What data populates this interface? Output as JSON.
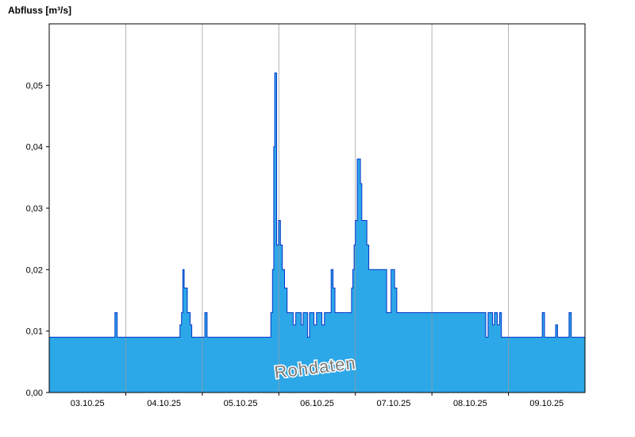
{
  "chart_data": {
    "type": "area",
    "title": "Abfluss [m³/s]",
    "ylabel": "Abfluss [m³/s]",
    "xlabel": "",
    "watermark": "Rohdaten",
    "x_unit": "hours since 03.10.25 00:00",
    "x_range_hours": [
      0,
      168
    ],
    "ylim": [
      0,
      0.06
    ],
    "grid": "vertical-day-lines-only",
    "legend": "none",
    "y_ticks": [
      {
        "value": 0.0,
        "label": "0,00"
      },
      {
        "value": 0.01,
        "label": "0,01"
      },
      {
        "value": 0.02,
        "label": "0,02"
      },
      {
        "value": 0.03,
        "label": "0,03"
      },
      {
        "value": 0.04,
        "label": "0,04"
      },
      {
        "value": 0.05,
        "label": "0,05"
      }
    ],
    "x_ticks": [
      {
        "day_center_hour": 12,
        "label": "03.10.25"
      },
      {
        "day_center_hour": 36,
        "label": "04.10.25"
      },
      {
        "day_center_hour": 60,
        "label": "05.10.25"
      },
      {
        "day_center_hour": 84,
        "label": "06.10.25"
      },
      {
        "day_center_hour": 108,
        "label": "07.10.25"
      },
      {
        "day_center_hour": 132,
        "label": "08.10.25"
      },
      {
        "day_center_hour": 156,
        "label": "09.10.25"
      }
    ],
    "day_gridlines_hours": [
      24,
      48,
      72,
      96,
      120,
      144
    ],
    "series": [
      {
        "name": "Rohdaten",
        "color_fill": "#2CA7E8",
        "color_line": "#0535C8",
        "step": "after",
        "points": [
          [
            0.0,
            0.009
          ],
          [
            20.6,
            0.013
          ],
          [
            21.3,
            0.009
          ],
          [
            41.0,
            0.011
          ],
          [
            41.5,
            0.013
          ],
          [
            41.9,
            0.02
          ],
          [
            42.3,
            0.017
          ],
          [
            43.3,
            0.013
          ],
          [
            44.2,
            0.011
          ],
          [
            44.7,
            0.009
          ],
          [
            48.8,
            0.013
          ],
          [
            49.5,
            0.009
          ],
          [
            69.5,
            0.013
          ],
          [
            70.0,
            0.02
          ],
          [
            70.4,
            0.04
          ],
          [
            70.7,
            0.052
          ],
          [
            71.3,
            0.024
          ],
          [
            71.9,
            0.028
          ],
          [
            72.5,
            0.024
          ],
          [
            73.1,
            0.02
          ],
          [
            73.8,
            0.017
          ],
          [
            74.6,
            0.013
          ],
          [
            76.5,
            0.011
          ],
          [
            77.3,
            0.013
          ],
          [
            79.0,
            0.011
          ],
          [
            79.6,
            0.013
          ],
          [
            81.0,
            0.009
          ],
          [
            81.6,
            0.013
          ],
          [
            83.0,
            0.011
          ],
          [
            83.8,
            0.013
          ],
          [
            85.5,
            0.011
          ],
          [
            86.3,
            0.013
          ],
          [
            88.4,
            0.02
          ],
          [
            89.0,
            0.017
          ],
          [
            89.6,
            0.013
          ],
          [
            94.8,
            0.017
          ],
          [
            95.2,
            0.02
          ],
          [
            95.6,
            0.024
          ],
          [
            96.0,
            0.028
          ],
          [
            96.6,
            0.038
          ],
          [
            97.6,
            0.034
          ],
          [
            98.0,
            0.028
          ],
          [
            99.6,
            0.024
          ],
          [
            100.2,
            0.02
          ],
          [
            105.8,
            0.013
          ],
          [
            107.2,
            0.02
          ],
          [
            108.3,
            0.017
          ],
          [
            109.0,
            0.013
          ],
          [
            136.9,
            0.009
          ],
          [
            137.6,
            0.013
          ],
          [
            139.0,
            0.011
          ],
          [
            139.6,
            0.013
          ],
          [
            140.5,
            0.011
          ],
          [
            141.2,
            0.013
          ],
          [
            141.8,
            0.009
          ],
          [
            154.6,
            0.013
          ],
          [
            155.3,
            0.009
          ],
          [
            158.8,
            0.011
          ],
          [
            159.4,
            0.009
          ],
          [
            163.0,
            0.013
          ],
          [
            163.7,
            0.009
          ],
          [
            168.0,
            0.009
          ]
        ]
      }
    ],
    "colors": {
      "frame": "#000000",
      "gridline": "#9a9a9a",
      "background": "#ffffff",
      "watermark_text": "#7b7b7b"
    }
  }
}
